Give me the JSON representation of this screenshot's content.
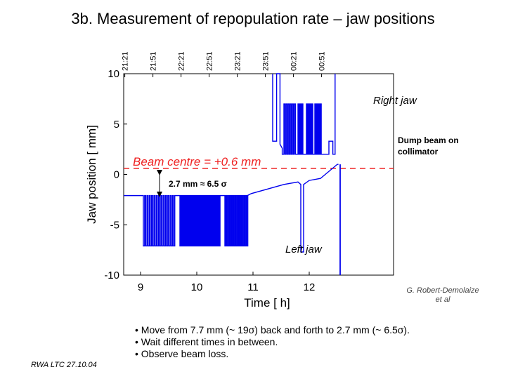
{
  "slide": {
    "title": "3b. Measurement of repopulation rate – jaw positions",
    "footer": "RWA LTC 27.10.04",
    "credit_line1": "G. Robert-Demolaize",
    "credit_line2": "et al",
    "bullets": [
      "• Move from 7.7 mm (~ 19σ) back and forth to 2.7 mm (~ 6.5σ).",
      "• Wait different times in between.",
      "• Observe beam loss."
    ]
  },
  "chart_data": {
    "type": "line",
    "xlabel": "Time [ h]",
    "ylabel": "Jaw position [ mm]",
    "xlim": [
      8.7,
      13.5
    ],
    "ylim": [
      -10,
      10
    ],
    "x_ticks": [
      "9",
      "10",
      "11",
      "12"
    ],
    "y_ticks": [
      "10",
      "5",
      "0",
      "-5",
      "-10"
    ],
    "top_time_ticks": [
      "21:21",
      "21:51",
      "22:21",
      "22:51",
      "23:21",
      "23:51",
      "00:21",
      "00:51"
    ],
    "beam_centre_mm": 0.6,
    "annotations": {
      "beam_centre": "Beam centre = +0.6 mm",
      "gap": "2.7 mm ≈ 6.5 σ",
      "right_jaw": "Right jaw",
      "left_jaw": "Left jaw",
      "dump_line1": "Dump beam on",
      "dump_line2": "collimator"
    },
    "series": [
      {
        "name": "Left jaw",
        "baseline_mm": -2.1,
        "retracted_mm": -7.1,
        "end_mm": 1.0
      },
      {
        "name": "Right jaw",
        "parked_mm": 2.0,
        "retracted_mm": 7.0
      }
    ],
    "colors": {
      "series": "#0000ee",
      "beam_centre": "#ee2222",
      "annotation": "#ee2222"
    }
  }
}
